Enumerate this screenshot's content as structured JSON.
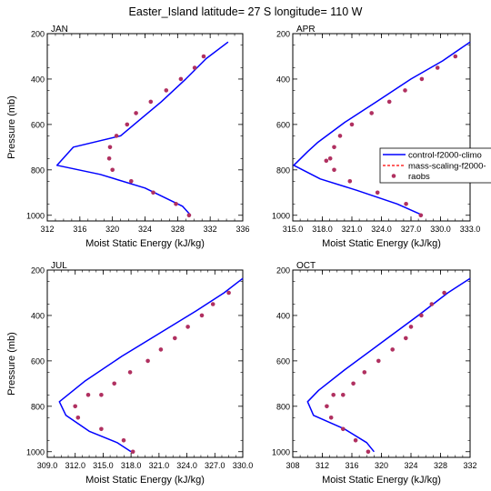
{
  "title": "Easter_Island  latitude= 27 S longitude= 110 W",
  "colors": {
    "control": "#0000ff",
    "mass_scaling": "#ff0000",
    "raobs": "#b03060",
    "frame": "#000000"
  },
  "legend": {
    "placement": "right, overlapping APR panel",
    "entries": [
      {
        "label": "control-f2000-climo",
        "style": "solid line",
        "color": "#0000ff"
      },
      {
        "label": "mass-scaling-f2000-",
        "style": "dashed line",
        "color": "#ff0000"
      },
      {
        "label": "raobs",
        "style": "dot",
        "color": "#b03060"
      }
    ]
  },
  "chart_data": [
    {
      "type": "line",
      "panel": "JAN",
      "xlabel": "Moist Static Energy (kJ/kg)",
      "ylabel": "Pressure (mb)",
      "xlim": [
        312,
        336
      ],
      "ylim": [
        1025,
        200
      ],
      "xticks": [
        312,
        316,
        320,
        324,
        328,
        332,
        336
      ],
      "xtick_labels": [
        "312",
        "316",
        "320",
        "324",
        "328",
        "332",
        "336"
      ],
      "yticks": [
        200,
        400,
        600,
        800,
        1000
      ],
      "ytick_labels": [
        "200",
        "400",
        "600",
        "800",
        "1000"
      ],
      "series": [
        {
          "name": "control-f2000-climo",
          "kind": "line",
          "x": [
            334.2,
            331.5,
            329.0,
            326.0,
            321.0,
            315.2,
            313.2,
            318.5,
            324.0,
            328.6,
            329.6
          ],
          "y": [
            237,
            310,
            400,
            500,
            650,
            700,
            780,
            820,
            880,
            960,
            1000
          ]
        },
        {
          "name": "mass-scaling-f2000-",
          "kind": "line",
          "x": [],
          "y": []
        },
        {
          "name": "raobs",
          "kind": "points",
          "x": [
            331.2,
            330.1,
            328.4,
            326.6,
            324.7,
            322.9,
            321.8,
            320.5,
            319.7,
            319.6,
            320.0,
            322.3,
            325.0,
            327.8,
            329.4
          ],
          "y": [
            300,
            350,
            400,
            450,
            500,
            550,
            600,
            650,
            700,
            750,
            800,
            850,
            900,
            950,
            1000
          ]
        }
      ]
    },
    {
      "type": "line",
      "panel": "APR",
      "xlabel": "Moist Static Energy (kJ/kg)",
      "ylabel": "",
      "xlim": [
        315,
        333
      ],
      "ylim": [
        1025,
        200
      ],
      "xticks": [
        315,
        318,
        321,
        324,
        327,
        330,
        333
      ],
      "xtick_labels": [
        "315.0",
        "318.0",
        "321.0",
        "324.0",
        "327.0",
        "330.0",
        "333.0"
      ],
      "yticks": [
        200,
        400,
        600,
        800,
        1000
      ],
      "ytick_labels": [
        "200",
        "400",
        "600",
        "800",
        "1000"
      ],
      "series": [
        {
          "name": "control-f2000-climo",
          "kind": "line",
          "x": [
            333.0,
            330.2,
            327.0,
            323.5,
            320.3,
            317.5,
            316.5,
            315.1,
            317.8,
            321.5,
            325.6,
            328.2
          ],
          "y": [
            237,
            320,
            400,
            500,
            590,
            680,
            720,
            780,
            840,
            890,
            950,
            1000
          ]
        },
        {
          "name": "mass-scaling-f2000-",
          "kind": "line",
          "x": [],
          "y": []
        },
        {
          "name": "raobs",
          "kind": "points",
          "x": [
            331.5,
            329.7,
            328.1,
            326.4,
            324.8,
            323.0,
            321.0,
            319.8,
            319.2,
            318.8,
            318.4,
            319.2,
            320.8,
            323.6,
            326.5,
            328.0
          ],
          "y": [
            300,
            350,
            400,
            450,
            500,
            550,
            600,
            650,
            700,
            750,
            760,
            800,
            850,
            900,
            950,
            1000
          ]
        }
      ]
    },
    {
      "type": "line",
      "panel": "JUL",
      "xlabel": "Moist Static Energy (kJ/kg)",
      "ylabel": "Pressure (mb)",
      "xlim": [
        309,
        330
      ],
      "ylim": [
        1025,
        200
      ],
      "xticks": [
        309,
        312,
        315,
        318,
        321,
        324,
        327,
        330
      ],
      "xtick_labels": [
        "309.0",
        "312.0",
        "315.0",
        "318.0",
        "321.0",
        "324.0",
        "327.0",
        "330.0"
      ],
      "yticks": [
        200,
        400,
        600,
        800,
        1000
      ],
      "ytick_labels": [
        "200",
        "400",
        "600",
        "800",
        "1000"
      ],
      "series": [
        {
          "name": "control-f2000-climo",
          "kind": "line",
          "x": [
            330.0,
            328.0,
            325.0,
            321.0,
            317.0,
            313.0,
            310.3,
            311.0,
            313.5,
            316.5,
            318.0
          ],
          "y": [
            237,
            300,
            380,
            480,
            580,
            690,
            780,
            840,
            910,
            960,
            1000
          ]
        },
        {
          "name": "mass-scaling-f2000-",
          "kind": "line",
          "x": [],
          "y": []
        },
        {
          "name": "raobs",
          "kind": "points",
          "x": [
            328.5,
            326.8,
            325.6,
            324.1,
            322.7,
            321.2,
            319.8,
            317.9,
            316.2,
            314.8,
            313.4,
            312.0,
            312.3,
            314.8,
            317.2,
            318.2
          ],
          "y": [
            300,
            350,
            400,
            450,
            500,
            550,
            600,
            650,
            700,
            750,
            750,
            800,
            850,
            900,
            950,
            1000
          ]
        }
      ]
    },
    {
      "type": "line",
      "panel": "OCT",
      "xlabel": "Moist Static Energy (kJ/kg)",
      "ylabel": "",
      "xlim": [
        308,
        332
      ],
      "ylim": [
        1025,
        200
      ],
      "xticks": [
        308,
        312,
        316,
        320,
        324,
        328,
        332
      ],
      "xtick_labels": [
        "308",
        "312",
        "316",
        "320",
        "324",
        "328",
        "332"
      ],
      "yticks": [
        200,
        400,
        600,
        800,
        1000
      ],
      "ytick_labels": [
        "200",
        "400",
        "600",
        "800",
        "1000"
      ],
      "series": [
        {
          "name": "control-f2000-climo",
          "kind": "line",
          "x": [
            332.0,
            329.0,
            325.0,
            320.0,
            315.0,
            311.5,
            310.0,
            310.8,
            315.0,
            318.0,
            319.0
          ],
          "y": [
            237,
            300,
            400,
            520,
            640,
            730,
            780,
            840,
            900,
            960,
            1000
          ]
        },
        {
          "name": "mass-scaling-f2000-",
          "kind": "line",
          "x": [],
          "y": []
        },
        {
          "name": "raobs",
          "kind": "points",
          "x": [
            328.5,
            326.8,
            325.4,
            324.0,
            323.3,
            321.5,
            319.6,
            317.7,
            316.2,
            314.8,
            313.5,
            312.6,
            313.2,
            314.8,
            316.5,
            318.2
          ],
          "y": [
            300,
            350,
            400,
            450,
            500,
            550,
            600,
            650,
            700,
            750,
            750,
            800,
            850,
            900,
            950,
            1000
          ]
        }
      ]
    }
  ]
}
